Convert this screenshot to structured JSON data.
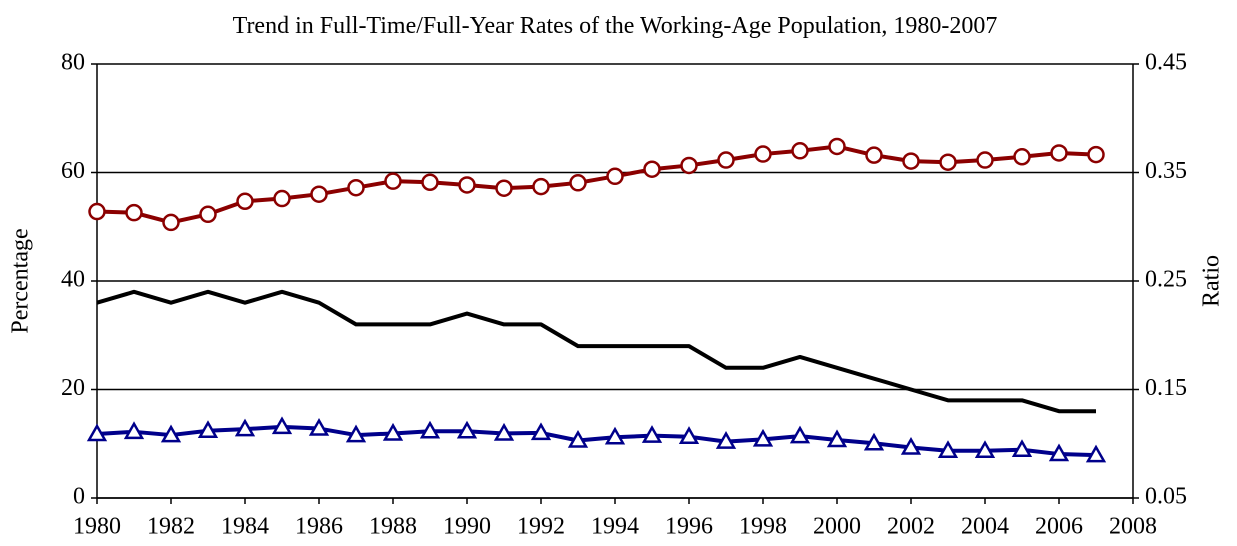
{
  "chart_data": {
    "type": "line",
    "title": "Trend in Full-Time/Full-Year Rates of the Working-Age Population, 1980-2007",
    "y_label": "Percentage",
    "y2_label": "Ratio",
    "x": [
      1980,
      1981,
      1982,
      1983,
      1984,
      1985,
      1986,
      1987,
      1988,
      1989,
      1990,
      1991,
      1992,
      1993,
      1994,
      1995,
      1996,
      1997,
      1998,
      1999,
      2000,
      2001,
      2002,
      2003,
      2004,
      2005,
      2006,
      2007
    ],
    "xlim": [
      1980,
      2008
    ],
    "xticks": [
      1980,
      1982,
      1984,
      1986,
      1988,
      1990,
      1992,
      1994,
      1996,
      1998,
      2000,
      2002,
      2004,
      2006,
      2008
    ],
    "ylim": [
      0,
      80
    ],
    "yticks": [
      0,
      20,
      40,
      60,
      80
    ],
    "y2lim": [
      0.05,
      0.45
    ],
    "y2ticks": [
      0.05,
      0.15,
      0.25,
      0.35,
      0.45
    ],
    "grid": true,
    "series": [
      {
        "color": "#8b0000",
        "marker": "circle",
        "values": [
          52.8,
          52.6,
          50.8,
          52.3,
          54.7,
          55.2,
          56.0,
          57.2,
          58.4,
          58.2,
          57.7,
          57.1,
          57.4,
          58.1,
          59.3,
          60.6,
          61.3,
          62.3,
          63.4,
          64.0,
          64.8,
          63.2,
          62.1,
          61.9,
          62.3,
          62.9,
          63.6,
          63.3
        ]
      },
      {
        "color": "#00008b",
        "marker": "triangle",
        "values": [
          11.8,
          12.2,
          11.6,
          12.4,
          12.7,
          13.1,
          12.8,
          11.6,
          11.9,
          12.3,
          12.3,
          11.9,
          12.0,
          10.6,
          11.2,
          11.5,
          11.3,
          10.4,
          10.8,
          11.4,
          10.7,
          10.1,
          9.3,
          8.7,
          8.7,
          8.9,
          8.1,
          7.9
        ]
      },
      {
        "color": "#000000",
        "marker": "none",
        "axis": "y2",
        "values": [
          0.23,
          0.24,
          0.23,
          0.24,
          0.23,
          0.24,
          0.23,
          0.21,
          0.21,
          0.21,
          0.22,
          0.21,
          0.21,
          0.19,
          0.19,
          0.19,
          0.19,
          0.17,
          0.17,
          0.18,
          0.17,
          0.16,
          0.15,
          0.14,
          0.14,
          0.14,
          0.13,
          0.13
        ]
      }
    ]
  }
}
